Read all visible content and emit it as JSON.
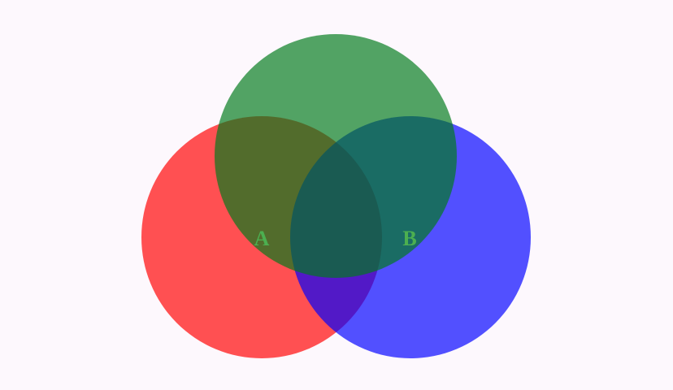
{
  "colors": {
    "background": "#fdf8fd",
    "circle_a": "#ff0000",
    "circle_b": "#0000ff",
    "circle_c": "#007a1a",
    "label": "#4caf50"
  },
  "diagram": {
    "type": "venn",
    "sets": [
      {
        "id": "a",
        "label": "A"
      },
      {
        "id": "b",
        "label": "B"
      },
      {
        "id": "c",
        "label": ""
      }
    ]
  }
}
